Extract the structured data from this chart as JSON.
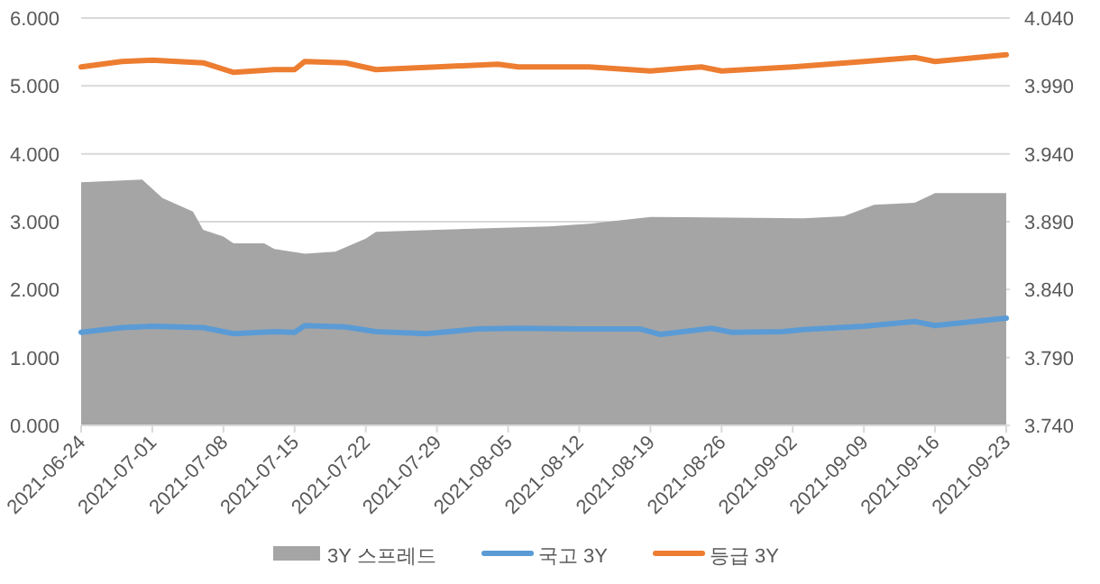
{
  "chart_data": {
    "type": "line",
    "xlim": [
      "2021-06-24",
      "2021-09-23"
    ],
    "xticks": [
      "2021-06-24",
      "2021-07-01",
      "2021-07-08",
      "2021-07-15",
      "2021-07-22",
      "2021-07-29",
      "2021-08-05",
      "2021-08-12",
      "2021-08-19",
      "2021-08-26",
      "2021-09-02",
      "2021-09-09",
      "2021-09-16",
      "2021-09-23"
    ],
    "ylim": [
      0,
      6
    ],
    "yticks": [
      {
        "value": 0,
        "label": "0.000"
      },
      {
        "value": 1,
        "label": "1.000"
      },
      {
        "value": 2,
        "label": "2.000"
      },
      {
        "value": 3,
        "label": "3.000"
      },
      {
        "value": 4,
        "label": "4.000"
      },
      {
        "value": 5,
        "label": "5.000"
      },
      {
        "value": 6,
        "label": "6.000"
      }
    ],
    "y2lim": [
      3.74,
      4.04
    ],
    "y2ticks": [
      {
        "value": 3.74,
        "label": "3.740"
      },
      {
        "value": 3.79,
        "label": "3.790"
      },
      {
        "value": 3.84,
        "label": "3.840"
      },
      {
        "value": 3.89,
        "label": "3.890"
      },
      {
        "value": 3.94,
        "label": "3.940"
      },
      {
        "value": 3.99,
        "label": "3.990"
      },
      {
        "value": 4.04,
        "label": "4.040"
      }
    ],
    "grid": "y",
    "legend": "bottom",
    "series": [
      {
        "name": "3Y 스프레드",
        "type": "area",
        "color": "#a5a5a5",
        "x": [
          "2021-06-24",
          "2021-06-30",
          "2021-07-02",
          "2021-07-05",
          "2021-07-06",
          "2021-07-08",
          "2021-07-09",
          "2021-07-12",
          "2021-07-13",
          "2021-07-16",
          "2021-07-19",
          "2021-07-22",
          "2021-07-23",
          "2021-07-29",
          "2021-08-09",
          "2021-08-13",
          "2021-08-19",
          "2021-09-03",
          "2021-09-07",
          "2021-09-10",
          "2021-09-14",
          "2021-09-16",
          "2021-09-23"
        ],
        "values": [
          3.58,
          3.62,
          3.35,
          3.15,
          2.88,
          2.78,
          2.68,
          2.68,
          2.6,
          2.53,
          2.56,
          2.75,
          2.85,
          2.88,
          2.93,
          2.97,
          3.07,
          3.05,
          3.08,
          3.25,
          3.28,
          3.42,
          3.42
        ]
      },
      {
        "name": "국고 3Y",
        "color": "#5b9bd5",
        "x": [
          "2021-06-24",
          "2021-06-28",
          "2021-07-01",
          "2021-07-06",
          "2021-07-09",
          "2021-07-13",
          "2021-07-15",
          "2021-07-16",
          "2021-07-20",
          "2021-07-23",
          "2021-07-28",
          "2021-08-02",
          "2021-08-06",
          "2021-08-12",
          "2021-08-18",
          "2021-08-20",
          "2021-08-25",
          "2021-08-27",
          "2021-09-01",
          "2021-09-03",
          "2021-09-09",
          "2021-09-14",
          "2021-09-16",
          "2021-09-23"
        ],
        "values": [
          1.37,
          1.44,
          1.46,
          1.44,
          1.35,
          1.38,
          1.37,
          1.47,
          1.45,
          1.38,
          1.35,
          1.42,
          1.43,
          1.42,
          1.42,
          1.34,
          1.43,
          1.37,
          1.38,
          1.41,
          1.46,
          1.53,
          1.47,
          1.58
        ]
      },
      {
        "name": "등급 3Y",
        "axis": "y2",
        "color": "#ed7d31",
        "x": [
          "2021-06-24",
          "2021-06-28",
          "2021-07-01",
          "2021-07-06",
          "2021-07-09",
          "2021-07-13",
          "2021-07-15",
          "2021-07-16",
          "2021-07-20",
          "2021-07-23",
          "2021-07-29",
          "2021-08-04",
          "2021-08-06",
          "2021-08-13",
          "2021-08-19",
          "2021-08-24",
          "2021-08-26",
          "2021-09-02",
          "2021-09-09",
          "2021-09-14",
          "2021-09-16",
          "2021-09-23"
        ],
        "values": [
          4.004,
          4.008,
          4.009,
          4.007,
          4.0,
          4.002,
          4.002,
          4.008,
          4.007,
          4.002,
          4.004,
          4.006,
          4.004,
          4.004,
          4.001,
          4.004,
          4.001,
          4.004,
          4.008,
          4.011,
          4.008,
          4.013
        ]
      }
    ]
  }
}
